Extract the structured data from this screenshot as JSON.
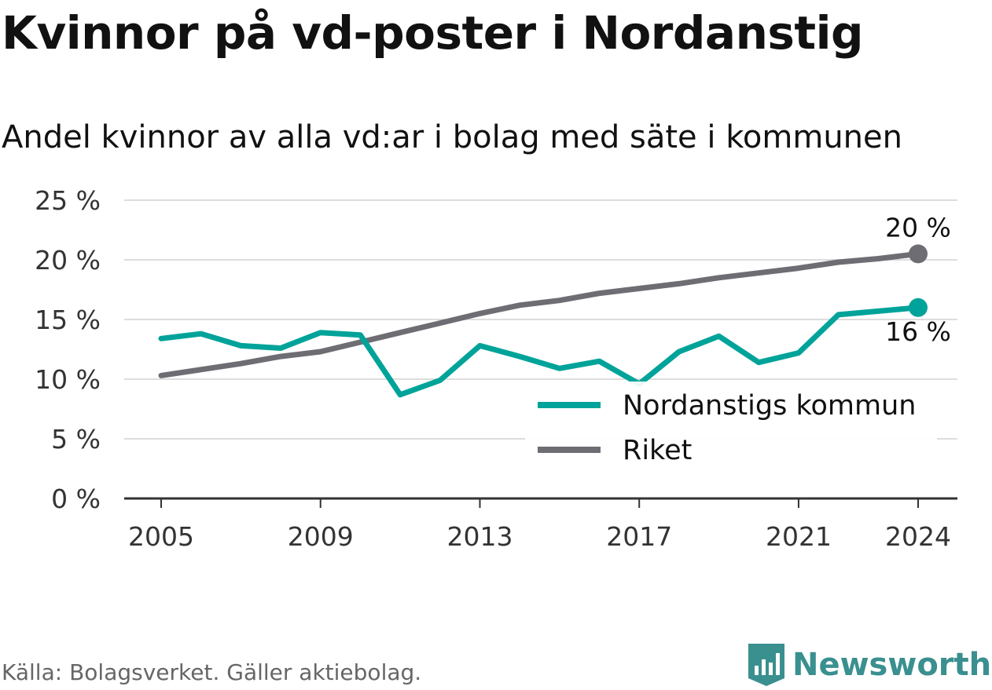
{
  "title": "Kvinnor på vd-poster i Nordanstig",
  "subtitle": "Andel kvinnor av alla vd:ar i bolag med säte i kommunen",
  "source": "Källa: Bolagsverket. Gäller aktiebolag.",
  "brand": "Newsworthy",
  "colors": {
    "nordanstig": "#00a399",
    "riket": "#6e6d73",
    "grid": "#dddddd",
    "axis": "#333333",
    "brand": "#3a8f8f"
  },
  "chart_data": {
    "type": "line",
    "x": [
      2005,
      2006,
      2007,
      2008,
      2009,
      2010,
      2011,
      2012,
      2013,
      2014,
      2015,
      2016,
      2017,
      2018,
      2019,
      2020,
      2021,
      2022,
      2023,
      2024
    ],
    "series": [
      {
        "name": "Nordanstigs kommun",
        "color": "#00a399",
        "values": [
          13.4,
          13.8,
          12.8,
          12.6,
          13.9,
          13.7,
          8.7,
          9.9,
          12.8,
          11.9,
          10.9,
          11.5,
          9.6,
          12.3,
          13.6,
          11.4,
          12.2,
          15.4,
          15.7,
          16.0
        ],
        "end_label": "16 %"
      },
      {
        "name": "Riket",
        "color": "#6e6d73",
        "values": [
          10.3,
          10.8,
          11.3,
          11.9,
          12.3,
          13.1,
          13.9,
          14.7,
          15.5,
          16.2,
          16.6,
          17.2,
          17.6,
          18.0,
          18.5,
          18.9,
          19.3,
          19.8,
          20.1,
          20.5
        ],
        "end_label": "20 %"
      }
    ],
    "ylim": [
      0,
      25
    ],
    "yticks": [
      0,
      5,
      10,
      15,
      20,
      25
    ],
    "ytick_labels": [
      "0 %",
      "5 %",
      "10 %",
      "15 %",
      "20 %",
      "25 %"
    ],
    "xticks": [
      2005,
      2009,
      2013,
      2017,
      2021,
      2024
    ],
    "xtick_labels": [
      "2005",
      "2009",
      "2013",
      "2017",
      "2021",
      "2024"
    ],
    "grid": true,
    "legend_position": "bottom-right"
  }
}
